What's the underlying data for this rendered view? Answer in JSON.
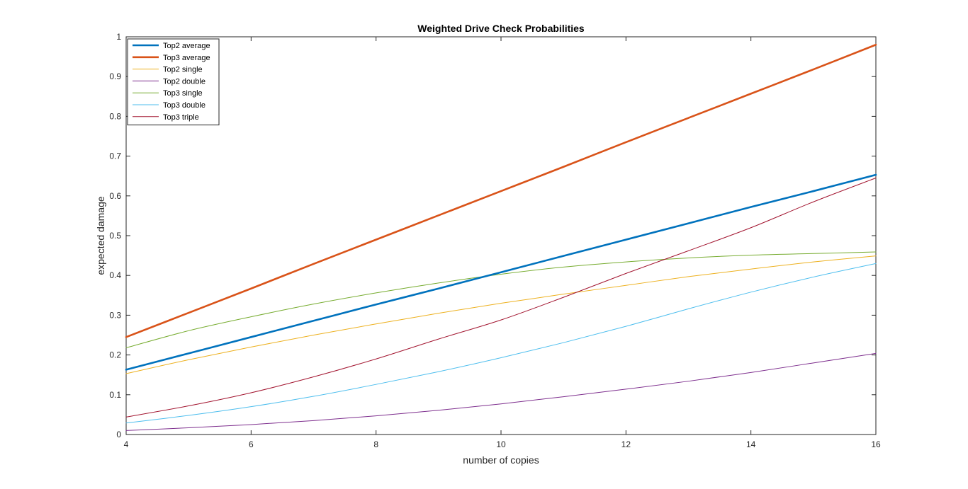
{
  "chart_data": {
    "type": "line",
    "title": "Weighted Drive Check Probabilities",
    "xlabel": "number of copies",
    "ylabel": "expected damage",
    "xlim": [
      4,
      16
    ],
    "ylim": [
      0,
      1
    ],
    "xticks": [
      4,
      6,
      8,
      10,
      12,
      14,
      16
    ],
    "yticks": [
      0,
      0.1,
      0.2,
      0.3,
      0.4,
      0.5,
      0.6,
      0.7,
      0.8,
      0.9,
      1
    ],
    "grid": false,
    "legend_position": "top-left",
    "x": [
      4,
      5,
      6,
      7,
      8,
      9,
      10,
      11,
      12,
      13,
      14,
      15,
      16
    ],
    "series": [
      {
        "name": "Top2 average",
        "color": "#0072BD",
        "width": "thick",
        "values": [
          0.163,
          0.204,
          0.245,
          0.286,
          0.327,
          0.367,
          0.408,
          0.449,
          0.49,
          0.531,
          0.572,
          0.612,
          0.653
        ]
      },
      {
        "name": "Top3 average",
        "color": "#D95319",
        "width": "thick",
        "values": [
          0.245,
          0.306,
          0.367,
          0.429,
          0.49,
          0.551,
          0.612,
          0.673,
          0.735,
          0.796,
          0.857,
          0.918,
          0.98
        ]
      },
      {
        "name": "Top2 single",
        "color": "#EDB120",
        "width": "thin",
        "values": [
          0.153,
          0.188,
          0.22,
          0.25,
          0.278,
          0.305,
          0.33,
          0.353,
          0.375,
          0.397,
          0.416,
          0.434,
          0.449
        ]
      },
      {
        "name": "Top2 double",
        "color": "#7E2F8E",
        "width": "thin",
        "values": [
          0.01,
          0.017,
          0.025,
          0.035,
          0.047,
          0.061,
          0.077,
          0.095,
          0.114,
          0.134,
          0.156,
          0.18,
          0.204
        ]
      },
      {
        "name": "Top3 single",
        "color": "#77AC30",
        "width": "thin",
        "values": [
          0.218,
          0.261,
          0.296,
          0.328,
          0.356,
          0.381,
          0.403,
          0.421,
          0.434,
          0.444,
          0.451,
          0.455,
          0.459
        ]
      },
      {
        "name": "Top3 double",
        "color": "#4DBEEE",
        "width": "thin",
        "values": [
          0.029,
          0.048,
          0.07,
          0.096,
          0.126,
          0.158,
          0.193,
          0.231,
          0.272,
          0.316,
          0.358,
          0.396,
          0.43
        ]
      },
      {
        "name": "Top3 triple",
        "color": "#A2142F",
        "width": "thin",
        "values": [
          0.044,
          0.072,
          0.105,
          0.145,
          0.19,
          0.24,
          0.288,
          0.345,
          0.405,
          0.462,
          0.52,
          0.585,
          0.645
        ]
      }
    ]
  }
}
